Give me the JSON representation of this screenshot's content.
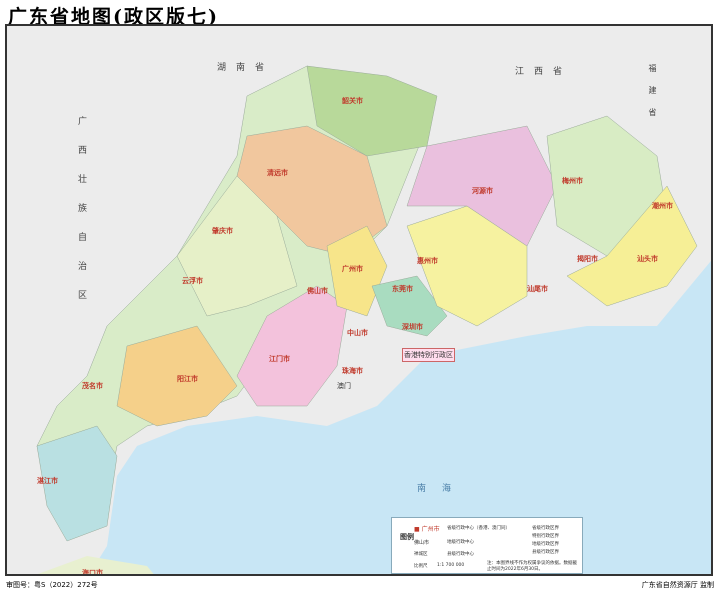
{
  "title": "广东省地图(政区版七)",
  "neighbors": {
    "hunan": "湖南省",
    "jiangxi": "江西省",
    "fujian": "福建省",
    "guangxi": "广西壮族自治区"
  },
  "seas": {
    "south_china_sea": "南海"
  },
  "cities": [
    {
      "name": "广州市"
    },
    {
      "name": "韶关市"
    },
    {
      "name": "清远市"
    },
    {
      "name": "肇庆市"
    },
    {
      "name": "云浮市"
    },
    {
      "name": "茂名市"
    },
    {
      "name": "阳江市"
    },
    {
      "name": "湛江市"
    },
    {
      "name": "江门市"
    },
    {
      "name": "佛山市"
    },
    {
      "name": "中山市"
    },
    {
      "name": "珠海市"
    },
    {
      "name": "深圳市"
    },
    {
      "name": "东莞市"
    },
    {
      "name": "惠州市"
    },
    {
      "name": "河源市"
    },
    {
      "name": "梅州市"
    },
    {
      "name": "潮州市"
    },
    {
      "name": "汕头市"
    },
    {
      "name": "揭阳市"
    },
    {
      "name": "汕尾市"
    }
  ],
  "special": {
    "hongkong": "香港特别行政区",
    "macau": "澳门",
    "haikou": "海口市"
  },
  "legend": {
    "title": "图例",
    "provincial_center": "广州市",
    "provincial_center_desc": "省级行政中心（香港、澳门同）",
    "prefecture_center": "佛山市",
    "prefecture_center_desc": "地级行政中心",
    "county_center": "禅城区",
    "county_center_desc": "县级行政中心",
    "line_provincial": "省级行政区界",
    "line_sar": "特别行政区界",
    "line_prefecture": "地级行政区界",
    "line_county": "县级行政区界",
    "scale_label": "比例尺",
    "scale": "1:1 700 000",
    "note": "注：本图界线不作为权属争议的依据。数据截止时间为2022年6月30日。"
  },
  "footer": {
    "approval": "审图号：粤S（2022）272号",
    "producer": "广东省自然资源厅 监制"
  },
  "colors": {
    "sea": "#c8e6f5",
    "outside": "#ededed",
    "red_city": "#c0392b"
  }
}
